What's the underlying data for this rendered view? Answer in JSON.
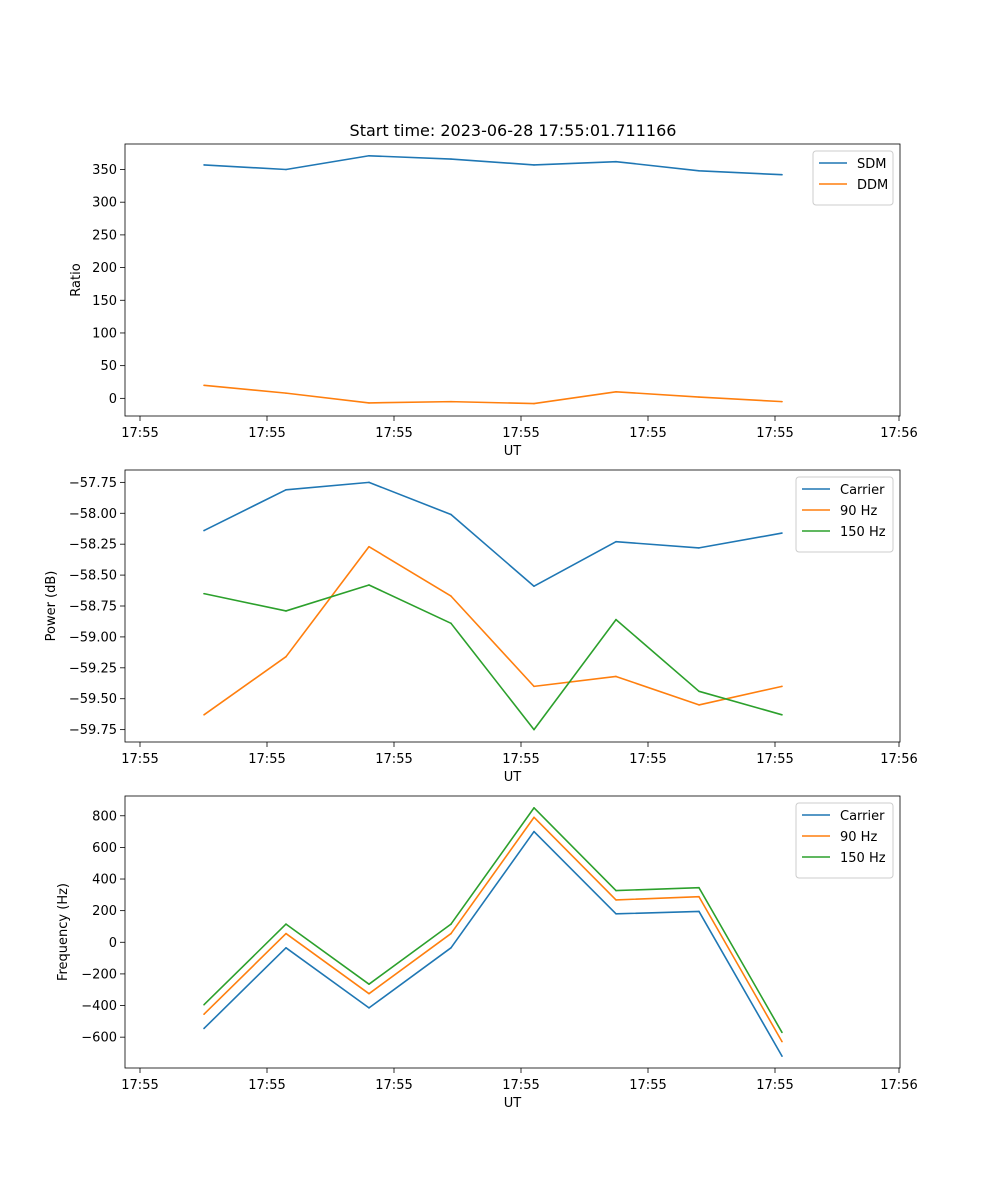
{
  "figure": {
    "title": "Start time: 2023-06-28 17:55:01.711166"
  },
  "chart_data": [
    {
      "type": "line",
      "xlabel": "UT",
      "ylabel": "Ratio",
      "xticks": [
        "17:55",
        "17:55",
        "17:55",
        "17:55",
        "17:55",
        "17:55",
        "17:56"
      ],
      "ylim": [
        -27,
        389
      ],
      "yticks": [
        0,
        50,
        100,
        150,
        200,
        250,
        300,
        350
      ],
      "yticklabels": [
        "0",
        "50",
        "100",
        "150",
        "200",
        "250",
        "300",
        "350"
      ],
      "grid": false,
      "legend_position": "upper right",
      "series": [
        {
          "name": "SDM",
          "color": "#1f77b4",
          "values": [
            357,
            350,
            371,
            366,
            357,
            362,
            348,
            342
          ]
        },
        {
          "name": "DDM",
          "color": "#ff7f0e",
          "values": [
            20,
            8,
            -7,
            -5,
            -8,
            10,
            2,
            -5
          ]
        }
      ]
    },
    {
      "type": "line",
      "xlabel": "UT",
      "ylabel": "Power (dB)",
      "xticks": [
        "17:55",
        "17:55",
        "17:55",
        "17:55",
        "17:55",
        "17:55",
        "17:56"
      ],
      "ylim": [
        -59.85,
        -57.65
      ],
      "yticks": [
        -57.75,
        -58.0,
        -58.25,
        -58.5,
        -58.75,
        -59.0,
        -59.25,
        -59.5,
        -59.75
      ],
      "yticklabels": [
        "−57.75",
        "−58.00",
        "−58.25",
        "−58.50",
        "−58.75",
        "−59.00",
        "−59.25",
        "−59.50",
        "−59.75"
      ],
      "grid": false,
      "legend_position": "upper right",
      "series": [
        {
          "name": "Carrier",
          "color": "#1f77b4",
          "values": [
            -58.14,
            -57.81,
            -57.75,
            -58.01,
            -58.59,
            -58.23,
            -58.28,
            -58.16
          ]
        },
        {
          "name": "90 Hz",
          "color": "#ff7f0e",
          "values": [
            -59.63,
            -59.16,
            -58.27,
            -58.67,
            -59.4,
            -59.32,
            -59.55,
            -59.4
          ]
        },
        {
          "name": "150 Hz",
          "color": "#2ca02c",
          "values": [
            -58.65,
            -58.79,
            -58.58,
            -58.89,
            -59.75,
            -58.86,
            -59.44,
            -59.63
          ]
        }
      ]
    },
    {
      "type": "line",
      "xlabel": "UT",
      "ylabel": "Frequency (Hz)",
      "xticks": [
        "17:55",
        "17:55",
        "17:55",
        "17:55",
        "17:55",
        "17:55",
        "17:56"
      ],
      "ylim": [
        -795,
        925
      ],
      "yticks": [
        800,
        600,
        400,
        200,
        0,
        -200,
        -400,
        -600
      ],
      "yticklabels": [
        "800",
        "600",
        "400",
        "200",
        "0",
        "−200",
        "−400",
        "−600"
      ],
      "grid": false,
      "legend_position": "upper right",
      "series": [
        {
          "name": "Carrier",
          "color": "#1f77b4",
          "values": [
            -545,
            -35,
            -415,
            -35,
            700,
            180,
            195,
            -720
          ]
        },
        {
          "name": "90 Hz",
          "color": "#ff7f0e",
          "values": [
            -455,
            55,
            -325,
            55,
            790,
            268,
            288,
            -628
          ]
        },
        {
          "name": "150 Hz",
          "color": "#2ca02c",
          "values": [
            -395,
            115,
            -265,
            115,
            850,
            327,
            345,
            -570
          ]
        }
      ]
    }
  ]
}
